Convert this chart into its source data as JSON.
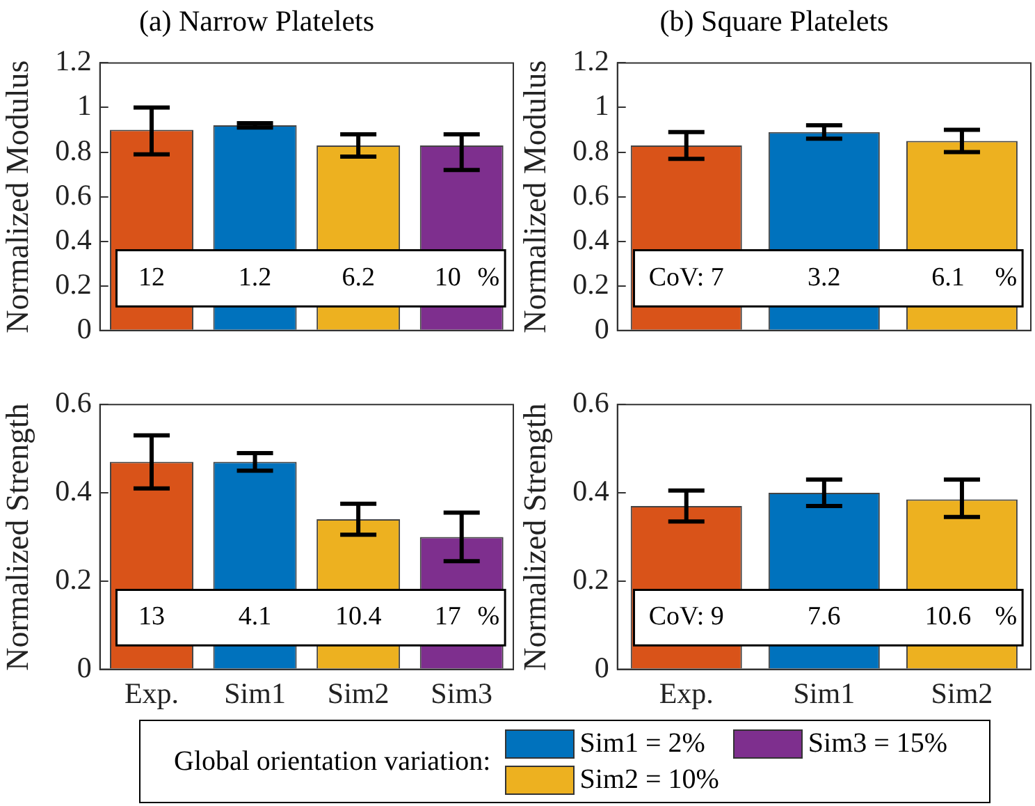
{
  "chart_data": [
    {
      "type": "bar",
      "stacked": true,
      "title": "(a) Narrow Platelets",
      "ylabel": "Normalized Modulus",
      "categories": [
        null,
        null,
        null,
        null
      ],
      "ylim": [
        0,
        1.2
      ],
      "yticks": [
        0,
        0.2,
        0.4,
        0.6,
        0.8,
        1,
        1.2
      ],
      "tick_labels": "y",
      "legend": "bottom",
      "legend_title": "Global orientation variation:",
      "series": [
        {
          "color": "#d95319",
          "values": [
            0.9,
            null,
            null,
            null
          ],
          "errors": [
            [
              0.79,
              1.0
            ],
            null,
            null,
            null
          ]
        },
        {
          "name": "Sim1 = 2%",
          "color": "#0072bd",
          "values": [
            null,
            0.92,
            null,
            null
          ],
          "errors": [
            null,
            [
              0.91,
              0.93
            ],
            null,
            null
          ]
        },
        {
          "name": "Sim2 = 10%",
          "color": "#edb120",
          "values": [
            null,
            null,
            0.83,
            null
          ],
          "errors": [
            null,
            null,
            [
              0.78,
              0.88
            ],
            null
          ]
        },
        {
          "name": "Sim3 = 15%",
          "color": "#7e2f8e",
          "values": [
            null,
            null,
            null,
            0.83
          ],
          "errors": [
            null,
            null,
            null,
            [
              0.72,
              0.88
            ]
          ]
        }
      ],
      "annotations": [
        "12",
        "1.2",
        "6.2",
        "10",
        "%"
      ]
    },
    {
      "type": "bar",
      "stacked": true,
      "title": "(b) Square Platelets",
      "ylabel": "Normalized Modulus",
      "categories": [
        null,
        null,
        null
      ],
      "ylim": [
        0,
        1.2
      ],
      "yticks": [
        0,
        0.2,
        0.4,
        0.6,
        0.8,
        1,
        1.2
      ],
      "tick_labels": "y",
      "series": [
        {
          "color": "#d95319",
          "values": [
            0.83,
            null,
            null
          ],
          "errors": [
            [
              0.77,
              0.89
            ],
            null,
            null
          ]
        },
        {
          "color": "#0072bd",
          "values": [
            null,
            0.89,
            null
          ],
          "errors": [
            null,
            [
              0.86,
              0.92
            ],
            null
          ]
        },
        {
          "color": "#edb120",
          "values": [
            null,
            null,
            0.85
          ],
          "errors": [
            null,
            null,
            [
              0.8,
              0.9
            ]
          ]
        }
      ],
      "annotations": [
        "CoV: 7",
        "3.2",
        "6.1",
        "%"
      ]
    },
    {
      "type": "bar",
      "stacked": true,
      "ylabel": "Normalized Strength",
      "categories": [
        "Exp.",
        "Sim1",
        "Sim2",
        "Sim3"
      ],
      "ylim": [
        0,
        0.6
      ],
      "yticks": [
        0,
        0.2,
        0.4,
        0.6
      ],
      "series": [
        {
          "color": "#d95319",
          "values": [
            0.47,
            null,
            null,
            null
          ],
          "errors": [
            [
              0.41,
              0.53
            ],
            null,
            null,
            null
          ]
        },
        {
          "color": "#0072bd",
          "values": [
            null,
            0.47,
            null,
            null
          ],
          "errors": [
            null,
            [
              0.45,
              0.49
            ],
            null,
            null
          ]
        },
        {
          "color": "#edb120",
          "values": [
            null,
            null,
            0.34,
            null
          ],
          "errors": [
            null,
            null,
            [
              0.305,
              0.375
            ],
            null
          ]
        },
        {
          "color": "#7e2f8e",
          "values": [
            null,
            null,
            null,
            0.3
          ],
          "errors": [
            null,
            null,
            null,
            [
              0.245,
              0.355
            ]
          ]
        }
      ],
      "annotations": [
        "13",
        "4.1",
        "10.4",
        "17",
        "%"
      ]
    },
    {
      "type": "bar",
      "stacked": true,
      "ylabel": "Normalized Strength",
      "categories": [
        "Exp.",
        "Sim1",
        "Sim2"
      ],
      "ylim": [
        0,
        0.6
      ],
      "yticks": [
        0,
        0.2,
        0.4,
        0.6
      ],
      "series": [
        {
          "color": "#d95319",
          "values": [
            0.37,
            null,
            null
          ],
          "errors": [
            [
              0.335,
              0.405
            ],
            null,
            null
          ]
        },
        {
          "color": "#0072bd",
          "values": [
            null,
            0.4,
            null
          ],
          "errors": [
            null,
            [
              0.37,
              0.43
            ],
            null
          ]
        },
        {
          "color": "#edb120",
          "values": [
            null,
            null,
            0.385
          ],
          "errors": [
            null,
            null,
            [
              0.345,
              0.43
            ]
          ]
        }
      ],
      "annotations": [
        "CoV: 9",
        "7.6",
        "10.6",
        "%"
      ]
    }
  ]
}
